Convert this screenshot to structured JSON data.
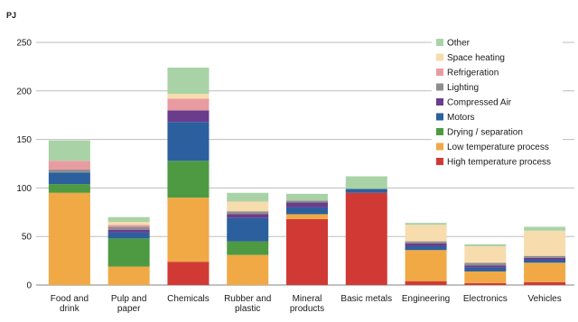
{
  "chart_data": {
    "type": "bar",
    "stacked": true,
    "unit": "PJ",
    "ylim": [
      0,
      250
    ],
    "yticks": [
      0,
      50,
      100,
      150,
      200,
      250
    ],
    "grid": true,
    "legend_position": "top-right",
    "categories": [
      [
        "Food and",
        "drink"
      ],
      [
        "Pulp and",
        "paper"
      ],
      [
        "Chemicals"
      ],
      [
        "Rubber and",
        "plastic"
      ],
      [
        "Mineral",
        "products"
      ],
      [
        "Basic metals"
      ],
      [
        "Engineering"
      ],
      [
        "Electronics"
      ],
      [
        "Vehicles"
      ]
    ],
    "series": [
      {
        "name": "High temperature process",
        "color": "#d13a34",
        "values": [
          0,
          0,
          24,
          0,
          68,
          95,
          4,
          2,
          3
        ]
      },
      {
        "name": "Low temperature process",
        "color": "#f0a945",
        "values": [
          95,
          19,
          66,
          31,
          5,
          0,
          32,
          12,
          20
        ]
      },
      {
        "name": "Drying / separation",
        "color": "#4e9a43",
        "values": [
          9,
          29,
          38,
          14,
          0,
          0,
          0,
          0,
          0
        ]
      },
      {
        "name": "Motors",
        "color": "#2c5f9e",
        "values": [
          12,
          6,
          40,
          24,
          7,
          4,
          4,
          4,
          3
        ]
      },
      {
        "name": "Compressed Air",
        "color": "#6a3c8c",
        "values": [
          0,
          3,
          12,
          4,
          5,
          0,
          3,
          2,
          2
        ]
      },
      {
        "name": "Lighting",
        "color": "#8e8e8e",
        "values": [
          3,
          3,
          0,
          3,
          2,
          0,
          2,
          3,
          2
        ]
      },
      {
        "name": "Refrigeration",
        "color": "#e89ca2",
        "values": [
          9,
          2,
          12,
          0,
          0,
          0,
          0,
          0,
          0
        ]
      },
      {
        "name": "Space heating",
        "color": "#f7dcae",
        "values": [
          0,
          3,
          5,
          10,
          0,
          0,
          17,
          17,
          26
        ]
      },
      {
        "name": "Other",
        "color": "#a9d3a6",
        "values": [
          21,
          5,
          27,
          9,
          7,
          13,
          2,
          2,
          4
        ]
      }
    ]
  }
}
